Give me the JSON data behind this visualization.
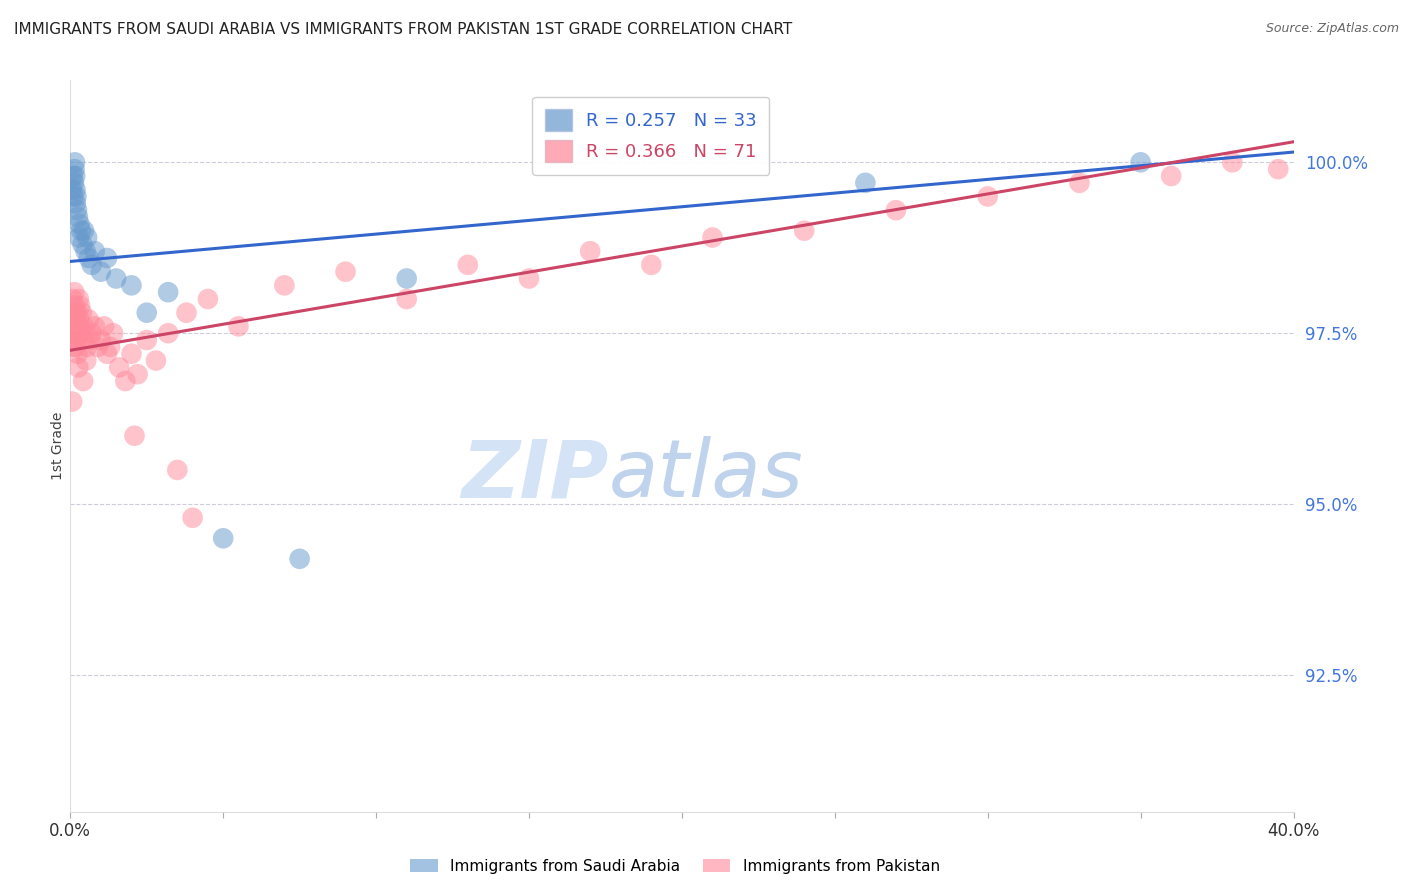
{
  "title": "IMMIGRANTS FROM SAUDI ARABIA VS IMMIGRANTS FROM PAKISTAN 1ST GRADE CORRELATION CHART",
  "source": "Source: ZipAtlas.com",
  "ylabel": "1st Grade",
  "ylabel_right_ticks": [
    100.0,
    97.5,
    95.0,
    92.5
  ],
  "ylabel_right_labels": [
    "100.0%",
    "97.5%",
    "95.0%",
    "92.5%"
  ],
  "xmin": 0.0,
  "xmax": 40.0,
  "ymin": 90.5,
  "ymax": 101.2,
  "legend_saudi_r": 0.257,
  "legend_saudi_n": 33,
  "legend_pak_r": 0.366,
  "legend_pak_n": 71,
  "saudi_color": "#6699CC",
  "pak_color": "#FF8899",
  "saudi_line_color": "#3366CC",
  "pak_line_color": "#CC4466",
  "watermark_zip_color": "#D0E0F5",
  "watermark_atlas_color": "#B0C8E8",
  "saudi_x": [
    0.05,
    0.08,
    0.1,
    0.12,
    0.14,
    0.15,
    0.16,
    0.17,
    0.18,
    0.2,
    0.22,
    0.25,
    0.28,
    0.3,
    0.35,
    0.4,
    0.45,
    0.5,
    0.55,
    0.6,
    0.7,
    0.8,
    1.0,
    1.2,
    1.5,
    2.0,
    2.5,
    3.2,
    5.0,
    7.5,
    11.0,
    26.0,
    35.0
  ],
  "saudi_y": [
    99.6,
    99.8,
    99.5,
    99.7,
    99.9,
    100.0,
    99.8,
    99.6,
    99.4,
    99.5,
    99.3,
    99.2,
    98.9,
    99.1,
    99.0,
    98.8,
    99.0,
    98.7,
    98.9,
    98.6,
    98.5,
    98.7,
    98.4,
    98.6,
    98.3,
    98.2,
    97.8,
    98.1,
    94.5,
    94.2,
    98.3,
    99.7,
    100.0
  ],
  "pak_x": [
    0.05,
    0.07,
    0.08,
    0.09,
    0.1,
    0.11,
    0.12,
    0.13,
    0.14,
    0.15,
    0.16,
    0.17,
    0.18,
    0.19,
    0.2,
    0.21,
    0.22,
    0.23,
    0.24,
    0.25,
    0.28,
    0.3,
    0.32,
    0.35,
    0.38,
    0.4,
    0.45,
    0.5,
    0.55,
    0.6,
    0.65,
    0.7,
    0.8,
    0.9,
    1.0,
    1.1,
    1.2,
    1.4,
    1.6,
    1.8,
    2.0,
    2.2,
    2.5,
    2.8,
    3.2,
    3.8,
    4.5,
    5.5,
    7.0,
    9.0,
    11.0,
    13.0,
    15.0,
    17.0,
    19.0,
    21.0,
    24.0,
    27.0,
    30.0,
    33.0,
    36.0,
    38.0,
    39.5,
    0.06,
    0.26,
    0.42,
    0.52,
    1.3,
    2.1,
    3.5,
    4.0
  ],
  "pak_y": [
    97.6,
    98.0,
    97.8,
    97.5,
    97.7,
    97.3,
    97.6,
    98.1,
    97.4,
    97.9,
    97.5,
    97.7,
    97.3,
    97.8,
    97.6,
    97.4,
    97.5,
    97.8,
    97.2,
    97.6,
    98.0,
    97.7,
    97.9,
    97.5,
    97.8,
    97.4,
    97.6,
    97.5,
    97.3,
    97.7,
    97.4,
    97.5,
    97.6,
    97.3,
    97.4,
    97.6,
    97.2,
    97.5,
    97.0,
    96.8,
    97.2,
    96.9,
    97.4,
    97.1,
    97.5,
    97.8,
    98.0,
    97.6,
    98.2,
    98.4,
    98.0,
    98.5,
    98.3,
    98.7,
    98.5,
    98.9,
    99.0,
    99.3,
    99.5,
    99.7,
    99.8,
    100.0,
    99.9,
    96.5,
    97.0,
    96.8,
    97.1,
    97.3,
    96.0,
    95.5,
    94.8
  ]
}
